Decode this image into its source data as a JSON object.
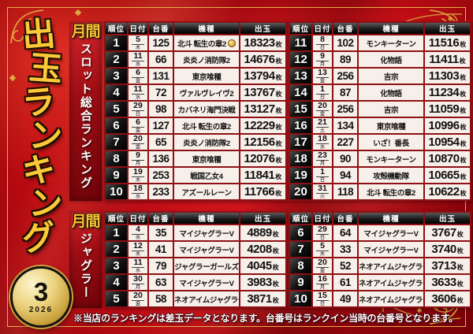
{
  "poster": {
    "title_vertical": "出玉ランキング",
    "month_badge": {
      "month": "3",
      "year": "2026"
    },
    "footer_note": "※当店のランキングは差玉データとなります。台番号はランクイン当時の台番号となります。"
  },
  "table_headers": {
    "rank": "順位",
    "date": "日付",
    "machine_no": "台番",
    "model": "機種",
    "payout": "出玉"
  },
  "units": {
    "payout": "枚"
  },
  "icons": {
    "rank1_badge": "gold-medal-icon"
  },
  "colors": {
    "background_red": "#c80f1a",
    "gold": "#e2b04a",
    "title_gold": "#fdc938",
    "table_grid_red": "#8f1014",
    "cell_white": "#f7efe9",
    "header_black": "#1c1c1c"
  },
  "sections": [
    {
      "id": "slot",
      "label_prefix": "月間",
      "label_title": "スロット総合ランキング",
      "tables": [
        [
          {
            "rank": "1",
            "day": "5",
            "weekday": "木",
            "machine_no": "125",
            "model": "北斗 転生の章2",
            "payout": "18323",
            "badge": true
          },
          {
            "rank": "2",
            "day": "11",
            "weekday": "水",
            "machine_no": "66",
            "model": "炎炎ノ消防隊2",
            "payout": "14676"
          },
          {
            "rank": "3",
            "day": "6",
            "weekday": "金",
            "machine_no": "131",
            "model": "東京喰種",
            "payout": "13794"
          },
          {
            "rank": "4",
            "day": "11",
            "weekday": "水",
            "machine_no": "72",
            "model": "ヴァルヴレイヴ2",
            "payout": "13767"
          },
          {
            "rank": "5",
            "day": "29",
            "weekday": "日",
            "machine_no": "98",
            "model": "カバネリ海門決戦",
            "payout": "13127"
          },
          {
            "rank": "6",
            "day": "6",
            "weekday": "金",
            "machine_no": "127",
            "model": "北斗 転生の章2",
            "payout": "12229"
          },
          {
            "rank": "7",
            "day": "20",
            "weekday": "金",
            "machine_no": "65",
            "model": "炎炎ノ消防隊2",
            "payout": "12156"
          },
          {
            "rank": "8",
            "day": "9",
            "weekday": "月",
            "machine_no": "136",
            "model": "東京喰種",
            "payout": "12076"
          },
          {
            "rank": "9",
            "day": "19",
            "weekday": "木",
            "machine_no": "253",
            "model": "戦国乙女4",
            "payout": "11841"
          },
          {
            "rank": "10",
            "day": "18",
            "weekday": "水",
            "machine_no": "233",
            "model": "アズールレーン",
            "payout": "11766"
          }
        ],
        [
          {
            "rank": "11",
            "day": "8",
            "weekday": "日",
            "machine_no": "102",
            "model": "モンキーターン",
            "payout": "11516"
          },
          {
            "rank": "12",
            "day": "9",
            "weekday": "月",
            "machine_no": "89",
            "model": "化物語",
            "payout": "11411"
          },
          {
            "rank": "13",
            "day": "13",
            "weekday": "金",
            "machine_no": "256",
            "model": "吉宗",
            "payout": "11303"
          },
          {
            "rank": "14",
            "day": "1",
            "weekday": "日",
            "machine_no": "87",
            "model": "化物語",
            "payout": "11234"
          },
          {
            "rank": "15",
            "day": "20",
            "weekday": "金",
            "machine_no": "256",
            "model": "吉宗",
            "payout": "11059"
          },
          {
            "rank": "16",
            "day": "21",
            "weekday": "土",
            "machine_no": "134",
            "model": "東京喰種",
            "payout": "10996"
          },
          {
            "rank": "17",
            "day": "18",
            "weekday": "水",
            "machine_no": "227",
            "model": "いざ！番長",
            "payout": "10954"
          },
          {
            "rank": "18",
            "day": "23",
            "weekday": "月",
            "machine_no": "90",
            "model": "モンキーターン",
            "payout": "10870"
          },
          {
            "rank": "19",
            "day": "1",
            "weekday": "日",
            "machine_no": "94",
            "model": "攻殻機動隊",
            "payout": "10665"
          },
          {
            "rank": "20",
            "day": "31",
            "weekday": "火",
            "machine_no": "118",
            "model": "北斗 転生の章2",
            "payout": "10622"
          }
        ]
      ]
    },
    {
      "id": "juggler",
      "label_prefix": "月間",
      "label_title": "ジャグラー",
      "tables": [
        [
          {
            "rank": "1",
            "day": "4",
            "weekday": "水",
            "machine_no": "35",
            "model": "マイジャグラーV",
            "payout": "4889"
          },
          {
            "rank": "2",
            "day": "12",
            "weekday": "木",
            "machine_no": "41",
            "model": "マイジャグラーV",
            "payout": "4208"
          },
          {
            "rank": "3",
            "day": "11",
            "weekday": "水",
            "machine_no": "79",
            "model": "ジャグラーガールズ",
            "payout": "4045"
          },
          {
            "rank": "4",
            "day": "30",
            "weekday": "月",
            "machine_no": "63",
            "model": "マイジャグラーV",
            "payout": "3983"
          },
          {
            "rank": "5",
            "day": "20",
            "weekday": "金",
            "machine_no": "58",
            "model": "ネオアイムジャグラー",
            "payout": "3871"
          }
        ],
        [
          {
            "rank": "6",
            "day": "29",
            "weekday": "日",
            "machine_no": "64",
            "model": "マイジャグラーV",
            "payout": "3767"
          },
          {
            "rank": "7",
            "day": "5",
            "weekday": "木",
            "machine_no": "33",
            "model": "マイジャグラーV",
            "payout": "3740"
          },
          {
            "rank": "8",
            "day": "20",
            "weekday": "金",
            "machine_no": "52",
            "model": "ネオアイムジャグラー",
            "payout": "3713"
          },
          {
            "rank": "9",
            "day": "16",
            "weekday": "月",
            "machine_no": "61",
            "model": "ネオアイムジャグラー",
            "payout": "3633"
          },
          {
            "rank": "10",
            "day": "15",
            "weekday": "日",
            "machine_no": "49",
            "model": "ネオアイムジャグラー",
            "payout": "3606"
          }
        ]
      ]
    }
  ]
}
